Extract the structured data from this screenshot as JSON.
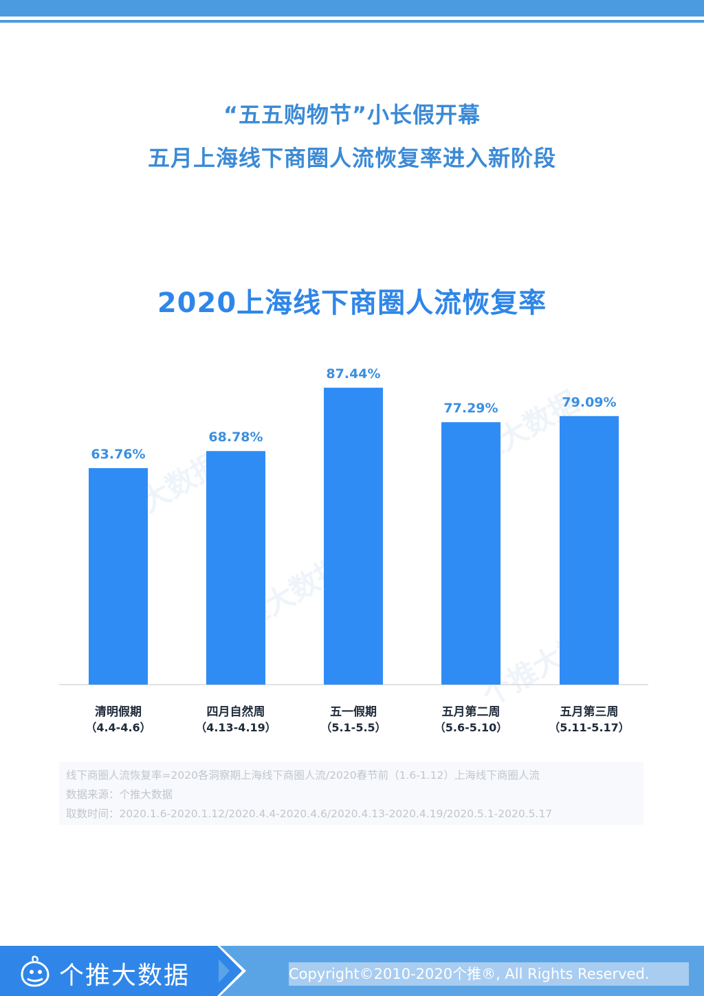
{
  "header": {
    "line1": "“五五购物节”小长假开幕",
    "line2": "五月上海线下商圈人流恢复率进入新阶段"
  },
  "chart_data": {
    "type": "bar",
    "title": "2020上海线下商圈人流恢复率",
    "categories": [
      {
        "name": "清明假期",
        "range": "（4.4-4.6）"
      },
      {
        "name": "四月自然周",
        "range": "（4.13-4.19）"
      },
      {
        "name": "五一假期",
        "range": "（5.1-5.5）"
      },
      {
        "name": "五月第二周",
        "range": "（5.6-5.10）"
      },
      {
        "name": "五月第三周",
        "range": "（5.11-5.17）"
      }
    ],
    "values": [
      63.76,
      68.78,
      87.44,
      77.29,
      79.09
    ],
    "labels": [
      "63.76%",
      "68.78%",
      "87.44%",
      "77.29%",
      "79.09%"
    ],
    "unit": "%",
    "ylim": [
      0,
      100
    ],
    "grid": false,
    "bar_color": "#2f8cf5",
    "label_color": "#3a8fe0"
  },
  "notes": {
    "formula": "线下商圈人流恢复率=2020各洞察期上海线下商圈人流/2020春节前（1.6-1.12）上海线下商圈人流",
    "source": "数据来源：个推大数据",
    "period": "取数时间：2020.1.6-2020.1.12/2020.4.4-2020.4.6/2020.4.13-2020.4.19/2020.5.1-2020.5.17"
  },
  "watermark": {
    "text": "个推大数据"
  },
  "footer": {
    "brand": "个推大数据",
    "logo_icon": "whale-logo-icon",
    "copyright": "Copyright©2010-2020个推®, All Rights Reserved."
  },
  "colors": {
    "brand_blue": "#2f86e8",
    "light_blue": "#4a9be0",
    "heading_blue": "#3b8ad6"
  }
}
